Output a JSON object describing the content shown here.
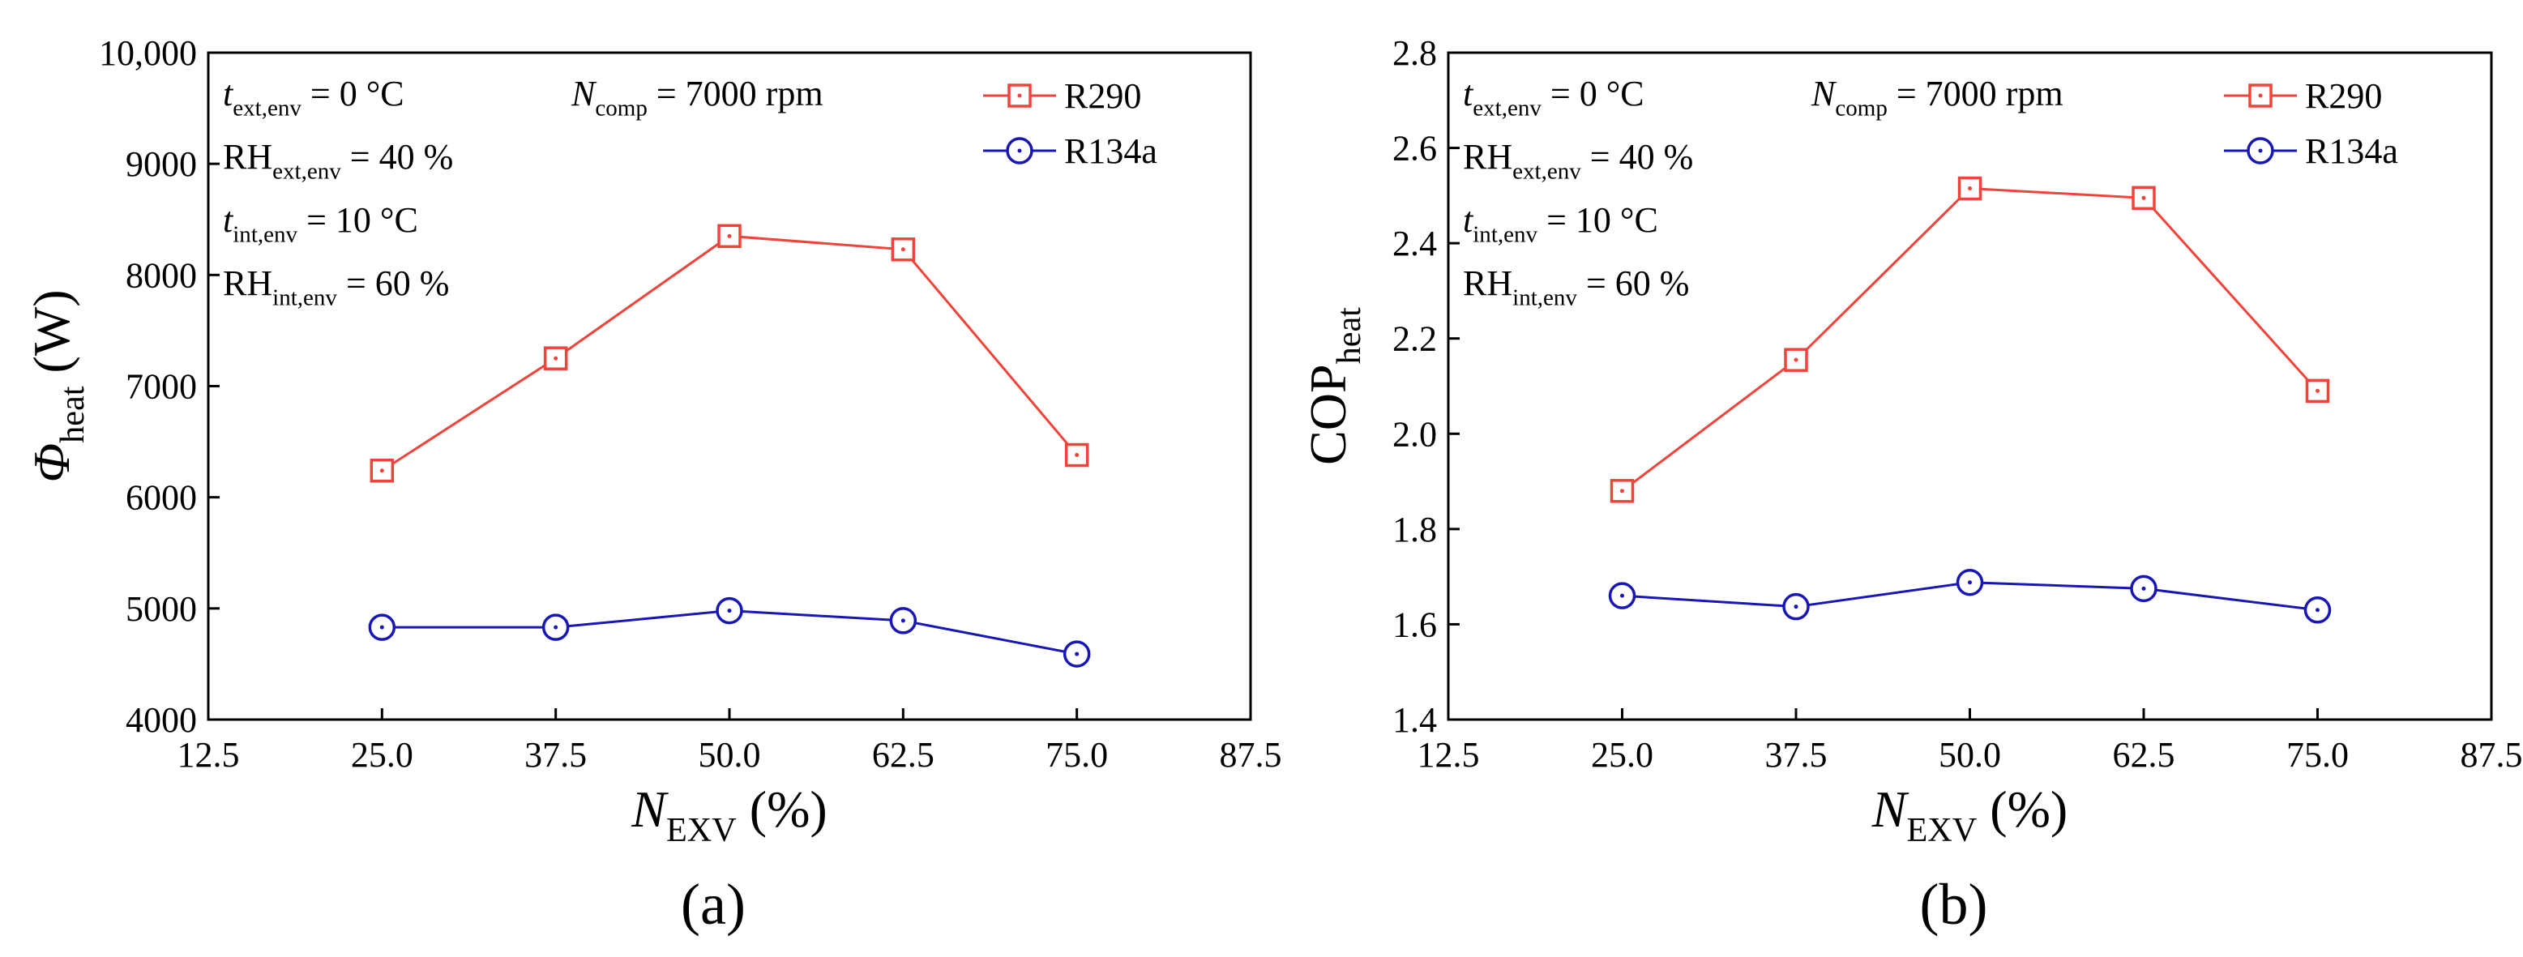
{
  "figure": {
    "panel_labels": [
      "(a)",
      "(b)"
    ]
  },
  "colors": {
    "r290": "#f0433a",
    "r134a": "#1717b8",
    "axis": "#000000"
  },
  "chart_data": [
    {
      "type": "line",
      "panel_label": "(a)",
      "x": [
        25.0,
        37.5,
        50.0,
        62.5,
        75.0
      ],
      "xticks": [
        "12.5",
        "25.0",
        "37.5",
        "50.0",
        "62.5",
        "75.0",
        "87.5"
      ],
      "xtick_values": [
        12.5,
        25.0,
        37.5,
        50.0,
        62.5,
        75.0,
        87.5
      ],
      "xlim": [
        12.5,
        87.5
      ],
      "ylim": [
        4000,
        10000
      ],
      "yticks": [
        "4000",
        "5000",
        "6000",
        "7000",
        "8000",
        "9000",
        "10,000"
      ],
      "ytick_values": [
        4000,
        5000,
        6000,
        7000,
        8000,
        9000,
        10000
      ],
      "xlabel": {
        "main": "N",
        "sub": "EXV",
        "tail": " (%)"
      },
      "ylabel": {
        "main": "Φ",
        "sub": "heat",
        "tail": " (W)"
      },
      "series": [
        {
          "name": "R290",
          "values": [
            6240,
            7250,
            8350,
            8230,
            6380
          ]
        },
        {
          "name": "R134a",
          "values": [
            4830,
            4830,
            4980,
            4890,
            4590
          ]
        }
      ],
      "annotations": {
        "t_ext": {
          "main": "t",
          "sub": "ext,env",
          "tail": " = 0 °C"
        },
        "rh_ext": {
          "main": "RH",
          "sub": "ext,env",
          "tail": " = 40 %"
        },
        "t_int": {
          "main": "t",
          "sub": "int,env",
          "tail": " = 10 °C"
        },
        "rh_int": {
          "main": "RH",
          "sub": "int,env",
          "tail": " = 60 %"
        },
        "n_comp": {
          "main": "N",
          "sub": "comp",
          "tail": " = 7000 rpm"
        }
      },
      "legend": {
        "position": "top-right",
        "entries": [
          "R290",
          "R134a"
        ]
      }
    },
    {
      "type": "line",
      "panel_label": "(b)",
      "x": [
        25.0,
        37.5,
        50.0,
        62.5,
        75.0
      ],
      "xticks": [
        "12.5",
        "25.0",
        "37.5",
        "50.0",
        "62.5",
        "75.0",
        "87.5"
      ],
      "xtick_values": [
        12.5,
        25.0,
        37.5,
        50.0,
        62.5,
        75.0,
        87.5
      ],
      "xlim": [
        12.5,
        87.5
      ],
      "ylim": [
        1.4,
        2.8
      ],
      "yticks": [
        "1.4",
        "1.6",
        "1.8",
        "2.0",
        "2.2",
        "2.4",
        "2.6",
        "2.8"
      ],
      "ytick_values": [
        1.4,
        1.6,
        1.8,
        2.0,
        2.2,
        2.4,
        2.6,
        2.8
      ],
      "xlabel": {
        "main": "N",
        "sub": "EXV",
        "tail": " (%)"
      },
      "ylabel": {
        "main": "COP",
        "sub": "heat",
        "tail": ""
      },
      "series": [
        {
          "name": "R290",
          "values": [
            1.88,
            2.155,
            2.515,
            2.495,
            2.09
          ]
        },
        {
          "name": "R134a",
          "values": [
            1.66,
            1.637,
            1.688,
            1.675,
            1.63
          ]
        }
      ],
      "annotations": {
        "t_ext": {
          "main": "t",
          "sub": "ext,env",
          "tail": " = 0 °C"
        },
        "rh_ext": {
          "main": "RH",
          "sub": "ext,env",
          "tail": " = 40 %"
        },
        "t_int": {
          "main": "t",
          "sub": "int,env",
          "tail": " = 10 °C"
        },
        "rh_int": {
          "main": "RH",
          "sub": "int,env",
          "tail": " = 60 %"
        },
        "n_comp": {
          "main": "N",
          "sub": "comp",
          "tail": " = 7000 rpm"
        }
      },
      "legend": {
        "position": "top-right",
        "entries": [
          "R290",
          "R134a"
        ]
      }
    }
  ]
}
